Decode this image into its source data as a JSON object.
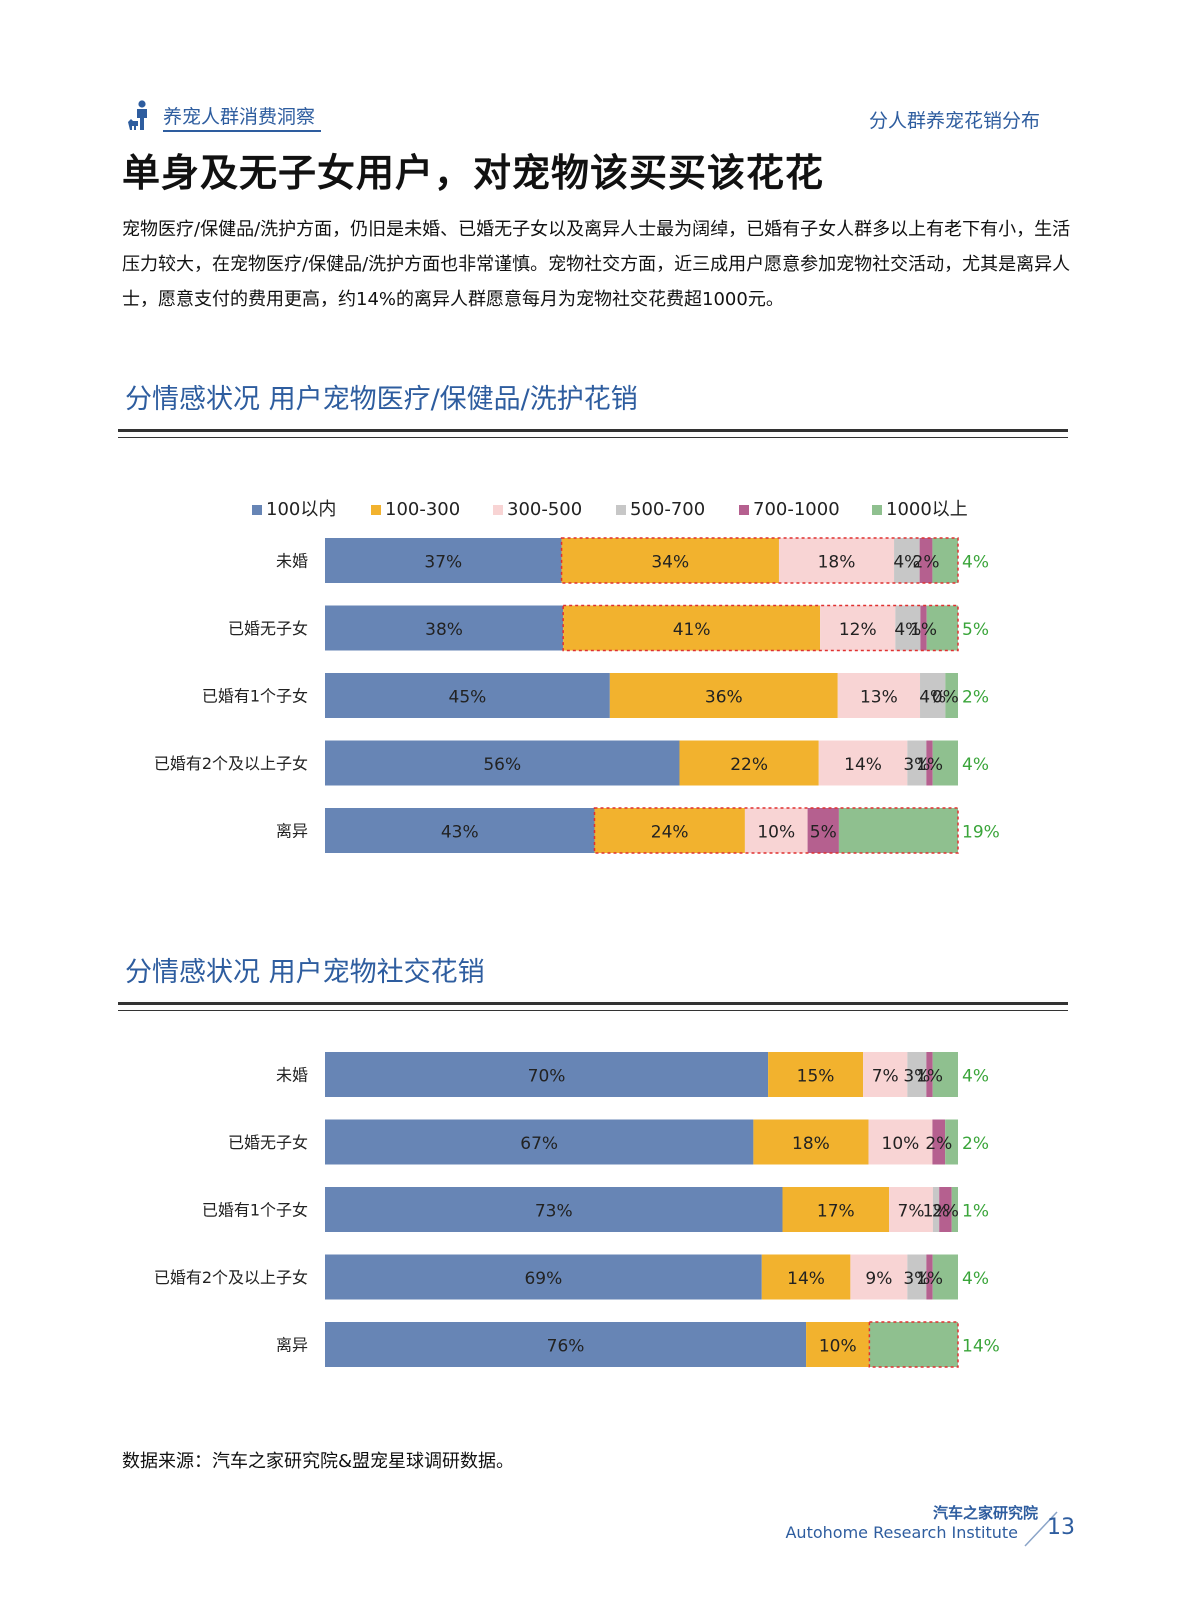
{
  "header": {
    "category": "养宠人群消费洞察",
    "section": "分人群养宠花销分布"
  },
  "title": "单身及无子女用户，对宠物该买买该花花",
  "body": "宠物医疗/保健品/洗护方面，仍旧是未婚、已婚无子女以及离异人士最为阔绰，已婚有子女人群多以上有老下有小，生活压力较大，在宠物医疗/保健品/洗护方面也非常谨慎。宠物社交方面，近三成用户愿意参加宠物社交活动，尤其是离异人士，愿意支付的费用更高，约14%的离异人群愿意每月为宠物社交花费超1000元。",
  "source": "数据来源：汽车之家研究院&盟宠星球调研数据。",
  "footer": {
    "org_cn": "汽车之家研究院",
    "org_en": "Autohome Research Institute",
    "page": "13"
  },
  "colors": {
    "accent": "#2e5d9f",
    "series": [
      "#6785b5",
      "#f2b22e",
      "#f8d4d4",
      "#c7c7c7",
      "#b5608f",
      "#8fc08f"
    ],
    "highlight": "#e03030",
    "last_label": "#3aa53a"
  },
  "chart_data": [
    {
      "type": "bar",
      "orientation": "horizontal",
      "stacked": true,
      "title": "分情感状况  用户宠物医疗/保健品/洗护花销",
      "legend_position": "top",
      "categories": [
        "未婚",
        "已婚无子女",
        "已婚有1个子女",
        "已婚有2个及以上子女",
        "离异"
      ],
      "series": [
        {
          "name": "100以内",
          "values": [
            37,
            38,
            45,
            56,
            43
          ]
        },
        {
          "name": "100-300",
          "values": [
            34,
            41,
            36,
            22,
            24
          ]
        },
        {
          "name": "300-500",
          "values": [
            18,
            12,
            13,
            14,
            10
          ]
        },
        {
          "name": "500-700",
          "values": [
            4,
            4,
            4,
            3,
            0
          ]
        },
        {
          "name": "700-1000",
          "values": [
            2,
            1,
            0,
            1,
            5
          ]
        },
        {
          "name": "1000以上",
          "values": [
            4,
            5,
            2,
            4,
            19
          ]
        }
      ],
      "highlights": [
        {
          "row": 0,
          "from": 1,
          "to": 5
        },
        {
          "row": 1,
          "from": 1,
          "to": 5
        },
        {
          "row": 4,
          "from": 1,
          "to": 5
        }
      ]
    },
    {
      "type": "bar",
      "orientation": "horizontal",
      "stacked": true,
      "title": "分情感状况  用户宠物社交花销",
      "categories": [
        "未婚",
        "已婚无子女",
        "已婚有1个子女",
        "已婚有2个及以上子女",
        "离异"
      ],
      "series": [
        {
          "name": "100以内",
          "values": [
            70,
            67,
            73,
            69,
            76
          ]
        },
        {
          "name": "100-300",
          "values": [
            15,
            18,
            17,
            14,
            10
          ]
        },
        {
          "name": "300-500",
          "values": [
            7,
            10,
            7,
            9,
            0
          ]
        },
        {
          "name": "500-700",
          "values": [
            3,
            0,
            1,
            3,
            0
          ]
        },
        {
          "name": "700-1000",
          "values": [
            1,
            2,
            2,
            1,
            0
          ]
        },
        {
          "name": "1000以上",
          "values": [
            4,
            2,
            1,
            4,
            14
          ]
        }
      ],
      "highlights": [
        {
          "row": 4,
          "from": 5,
          "to": 5
        }
      ]
    }
  ]
}
